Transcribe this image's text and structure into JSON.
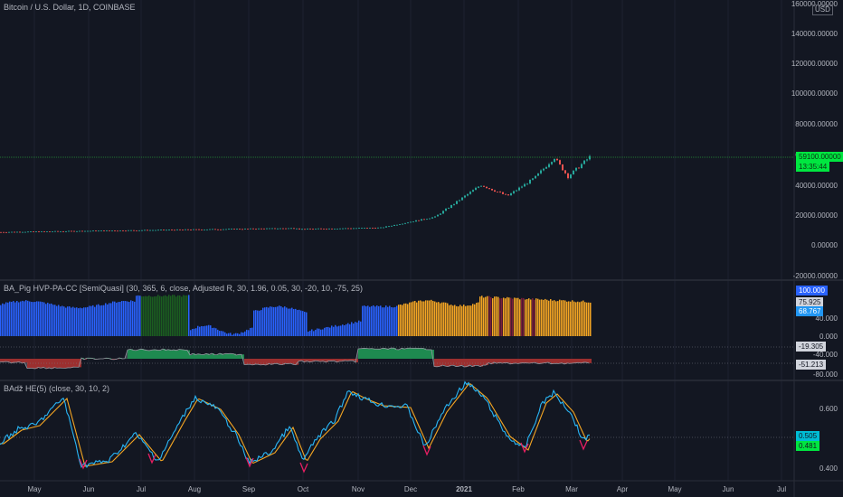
{
  "main_pane": {
    "title": "Bitcoin / U.S. Dollar, 1D, COINBASE",
    "currency": "USD",
    "price_ticks": [
      "160000.00000",
      "140000.00000",
      "120000.00000",
      "100000.00000",
      "80000.00000",
      "60000.00000",
      "40000.00000",
      "20000.00000",
      "0.00000",
      "-20000.00000"
    ],
    "price_badge": "59100.00000",
    "countdown": "13:35:44",
    "colors": {
      "up": "#26a69a",
      "down": "#ef5350",
      "price_line": "#2ecc40",
      "badge_bg": "#00e640"
    }
  },
  "hvp_pane": {
    "title": "BA_Pig HVP-PA-CC [SemiQuasi] (30, 365, 6, close, Adjusted R, 30, 1.96, 0.05, 30, -20, 10, -75, 25)",
    "ticks": [
      "80.000",
      "40.000",
      "0.000",
      "-40.000",
      "-80.000"
    ],
    "badges": {
      "hundred": "100.000",
      "mid": "75.925",
      "current": "68.767",
      "osc": "-19.305",
      "osc2": "-51.213"
    },
    "colors": {
      "blue": "#2962ff",
      "green": "#1b5e20",
      "orange": "#f5a623",
      "magenta": "#7b1f3a"
    }
  },
  "he_pane": {
    "title": "BAǆ HE(5) (close, 30, 10, 2)",
    "ticks": [
      "0.600",
      "0.400"
    ],
    "badges": {
      "cyan": "0.505",
      "green": "0.481"
    },
    "colors": {
      "fast": "#29b6f6",
      "slow": "#f5a623",
      "low": "#e91e63"
    }
  },
  "time_axis": {
    "labels": [
      "May",
      "Jun",
      "Jul",
      "Aug",
      "Sep",
      "Oct",
      "Nov",
      "Dec",
      "2021",
      "Feb",
      "Mar",
      "Apr",
      "May",
      "Jun",
      "Jul"
    ]
  }
}
